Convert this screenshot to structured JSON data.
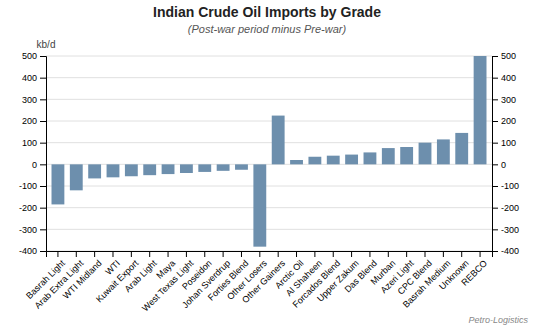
{
  "chart_data": {
    "type": "bar",
    "title": "Indian Crude Oil Imports by Grade",
    "subtitle": "(Post-war period minus Pre-war)",
    "ylabel": "kb/d",
    "annotation": "Petro-Logistics",
    "categories": [
      "Basrah Light",
      "Arab Extra Light",
      "WTI Midland",
      "WTI",
      "Kuwait Export",
      "Arab Light",
      "Maya",
      "West Texas Light",
      "Poseidon",
      "Johan Sverdrup",
      "Forties Blend",
      "Other Losers",
      "Other Gainers",
      "Arctic Oil",
      "Al Shaheen",
      "Forcados Blend",
      "Upper Zakum",
      "Das Blend",
      "Murban",
      "Azeri Light",
      "CPC Blend",
      "Basrah Medium",
      "Unknown",
      "REBCO"
    ],
    "values": [
      -185,
      -120,
      -65,
      -60,
      -55,
      -50,
      -45,
      -40,
      -35,
      -30,
      -25,
      -380,
      225,
      20,
      35,
      40,
      45,
      55,
      75,
      80,
      100,
      115,
      145,
      500
    ],
    "color": "#6d8fad",
    "ylim": [
      -400,
      500
    ],
    "yticks": [
      -400,
      -300,
      -200,
      -100,
      0,
      100,
      200,
      300,
      400,
      500
    ],
    "y2lim": [
      -400,
      500
    ],
    "y2ticks": [
      -400,
      -300,
      -200,
      -100,
      0,
      100,
      200,
      300,
      400,
      500
    ],
    "grid": true
  }
}
